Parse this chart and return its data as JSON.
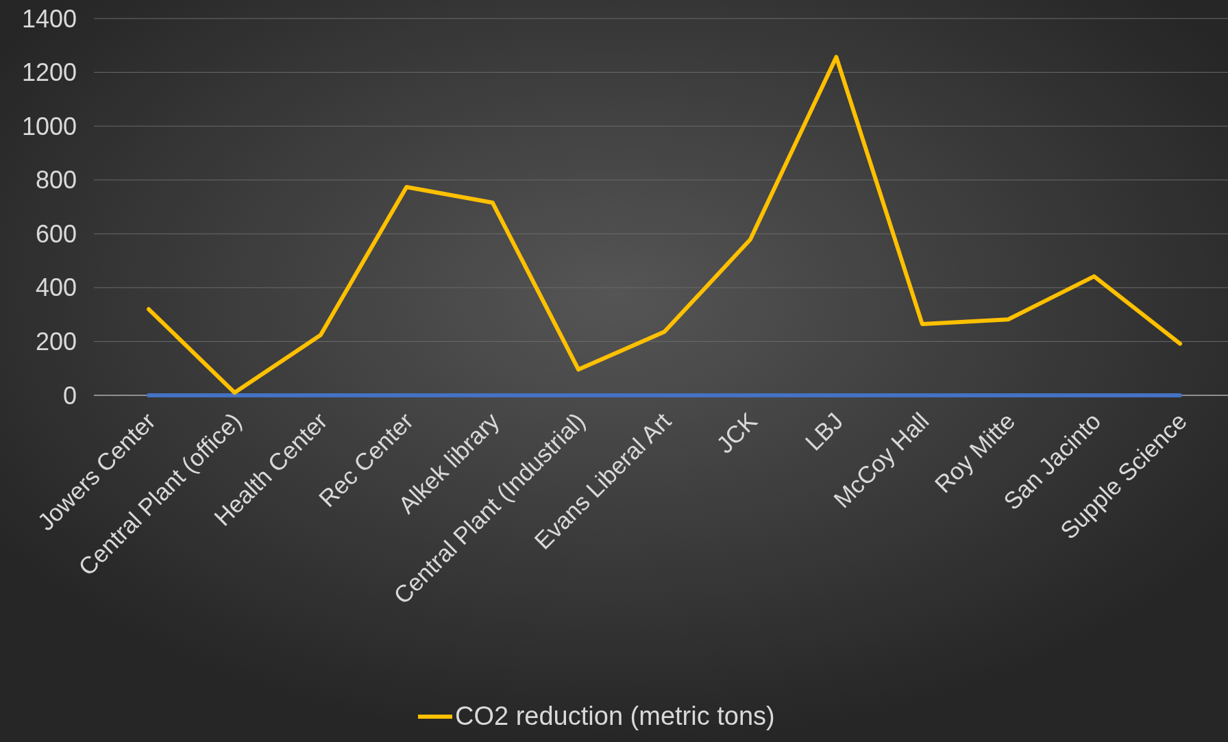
{
  "chart_data": {
    "type": "line",
    "categories": [
      "Jowers Center",
      "Central Plant (office)",
      "Health Center",
      "Rec Center",
      "Alkek library",
      "Central Plant (Industrial)",
      "Evans Liberal Art",
      "JCK",
      "LBJ",
      "McCoy Hall",
      "Roy Mitte",
      "San Jacinto",
      "Supple Science"
    ],
    "series": [
      {
        "name": "CO2 reduction (metric tons)",
        "color": "#ffc000",
        "values": [
          320,
          10,
          224,
          774,
          716,
          96,
          236,
          579,
          1257,
          265,
          282,
          442,
          192
        ]
      },
      {
        "color": "#4472c4",
        "values": [
          0,
          0,
          0,
          0,
          0,
          0,
          0,
          0,
          0,
          0,
          0,
          0,
          0
        ]
      }
    ],
    "ylim": [
      0,
      1400
    ],
    "yticks": [
      0,
      200,
      400,
      600,
      800,
      1000,
      1200,
      1400
    ],
    "grid": "y",
    "legend": "bottom",
    "marker": "none",
    "line_style": "solid"
  }
}
